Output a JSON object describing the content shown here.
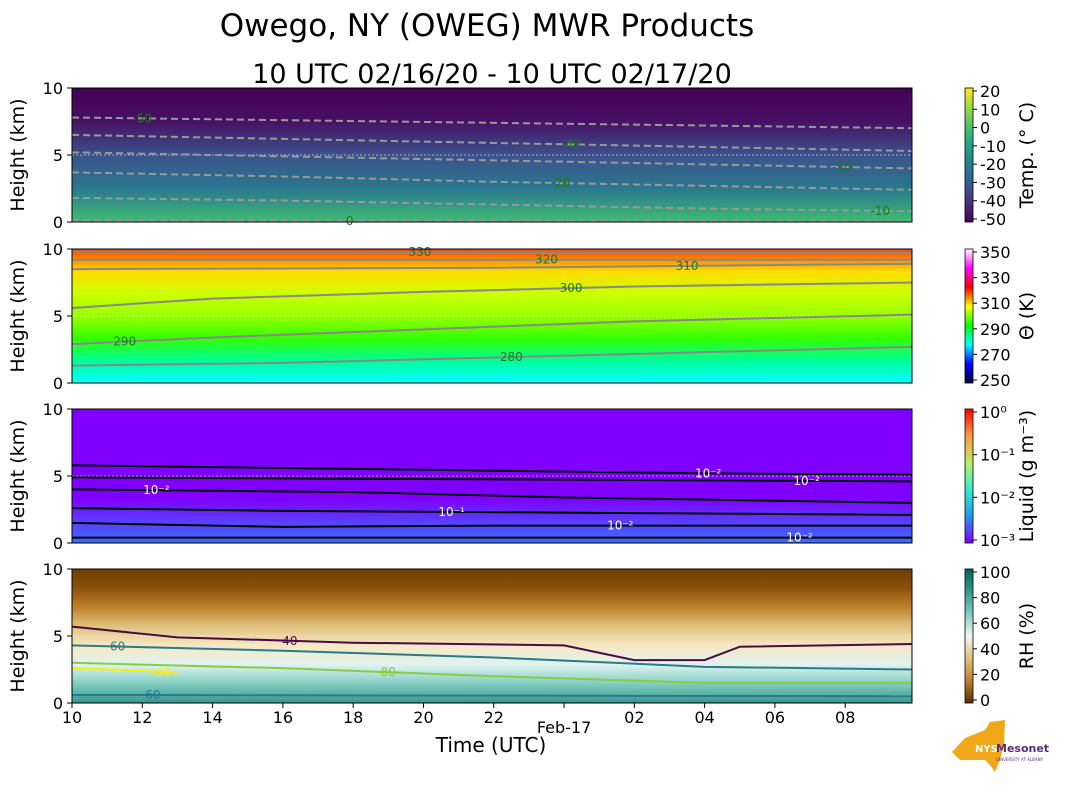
{
  "chart_data": {
    "type": "heatmap",
    "title": "Owego, NY (OWEG) MWR Products",
    "subtitle": "10 UTC 02/16/20 - 10 UTC 02/17/20",
    "xlabel": "Time (UTC)",
    "xlim_hours": [
      0,
      23.9
    ],
    "x_ticks": [
      {
        "h": 0,
        "label": "10"
      },
      {
        "h": 2,
        "label": "12"
      },
      {
        "h": 4,
        "label": "14"
      },
      {
        "h": 6,
        "label": "16"
      },
      {
        "h": 8,
        "label": "18"
      },
      {
        "h": 10,
        "label": "20"
      },
      {
        "h": 12,
        "label": "22"
      },
      {
        "h": 14,
        "label": "Feb-17"
      },
      {
        "h": 16,
        "label": "02"
      },
      {
        "h": 18,
        "label": "04"
      },
      {
        "h": 20,
        "label": "06"
      },
      {
        "h": 22,
        "label": "08"
      }
    ],
    "panels": [
      {
        "name": "temperature",
        "ylabel": "Height (km)",
        "ylim": [
          0,
          10
        ],
        "yticks": [
          "0",
          "5",
          "10"
        ],
        "gradient": [
          "#3fbc73",
          "#2a788e",
          "#3b528b",
          "#471164",
          "#440154"
        ],
        "cbar_label": "Temp. (° C)",
        "cbar_ticks": [
          "20",
          "10",
          "0",
          "-10",
          "-20",
          "-30",
          "-40",
          "-50"
        ],
        "cbar_colors": [
          "#fde725",
          "#8fd744",
          "#35b779",
          "#21918c",
          "#31688e",
          "#443983",
          "#440154"
        ],
        "contours": [
          {
            "level": "-50",
            "color": "#999999",
            "dash": true,
            "label_color": "#1a7a1a",
            "label_at": 2,
            "points": [
              [
                0,
                7.8
              ],
              [
                6,
                7.6
              ],
              [
                12,
                7.4
              ],
              [
                18,
                7.2
              ],
              [
                23.9,
                7.0
              ]
            ]
          },
          {
            "level": "-40",
            "color": "#999999",
            "dash": true,
            "label_color": "#1a7a1a",
            "label_at": 14.2,
            "points": [
              [
                0,
                6.5
              ],
              [
                6,
                6.2
              ],
              [
                12,
                5.9
              ],
              [
                18,
                5.6
              ],
              [
                23.9,
                5.3
              ]
            ]
          },
          {
            "level": "-30",
            "color": "#999999",
            "dash": true,
            "label_color": "#1a7a1a",
            "label_at": 21.9,
            "points": [
              [
                0,
                5.2
              ],
              [
                6,
                4.9
              ],
              [
                12,
                4.6
              ],
              [
                18,
                4.3
              ],
              [
                23.9,
                4.0
              ]
            ]
          },
          {
            "level": "-20",
            "color": "#999999",
            "dash": true,
            "label_color": "#1a7a1a",
            "label_at": 13.9,
            "points": [
              [
                0,
                3.7
              ],
              [
                6,
                3.4
              ],
              [
                12,
                3.0
              ],
              [
                18,
                2.7
              ],
              [
                23.9,
                2.4
              ]
            ]
          },
          {
            "level": "-10",
            "color": "#999999",
            "dash": true,
            "label_color": "#1a7a1a",
            "label_at": 23,
            "points": [
              [
                0,
                1.8
              ],
              [
                6,
                1.6
              ],
              [
                12,
                1.3
              ],
              [
                18,
                1.0
              ],
              [
                23.9,
                0.8
              ]
            ]
          },
          {
            "level": "0",
            "color": "#999999",
            "dash": true,
            "label_color": "#1a7a1a",
            "label_at": 7.9,
            "points": [
              [
                0,
                0.1
              ],
              [
                23.9,
                0.05
              ]
            ]
          }
        ]
      },
      {
        "name": "potential-temperature",
        "ylabel": "Height (km)",
        "ylim": [
          0,
          10
        ],
        "yticks": [
          "0",
          "5",
          "10"
        ],
        "gradient": [
          "#00ffff",
          "#00ff99",
          "#33ff00",
          "#99ff00",
          "#ccff00",
          "#ffdd00",
          "#ff4400"
        ],
        "cbar_label": "Θ (K)",
        "cbar_ticks": [
          "350",
          "330",
          "310",
          "290",
          "270",
          "250"
        ],
        "cbar_colors": [
          "#ffffff",
          "#ff00ff",
          "#ff0000",
          "#ffff00",
          "#00ff00",
          "#00ffff",
          "#0000ff",
          "#000033"
        ],
        "contours": [
          {
            "level": "330",
            "color": "#888888",
            "dash": false,
            "label_color": "#1a7a1a",
            "label_at": 9.9,
            "points": [
              [
                0,
                9.8
              ],
              [
                23.9,
                9.7
              ]
            ]
          },
          {
            "level": "320",
            "color": "#888888",
            "dash": false,
            "label_color": "#1a7a1a",
            "label_at": 13.5,
            "points": [
              [
                0,
                9.2
              ],
              [
                23.9,
                9.2
              ]
            ]
          },
          {
            "level": "310",
            "color": "#888888",
            "dash": false,
            "label_color": "#1a7a1a",
            "label_at": 17.5,
            "points": [
              [
                0,
                8.5
              ],
              [
                12,
                8.6
              ],
              [
                23.9,
                8.9
              ]
            ]
          },
          {
            "level": "300",
            "color": "#888888",
            "dash": false,
            "label_color": "#1a7a1a",
            "label_at": 14.2,
            "points": [
              [
                0,
                5.6
              ],
              [
                4,
                6.3
              ],
              [
                10,
                6.8
              ],
              [
                16,
                7.2
              ],
              [
                23.9,
                7.5
              ]
            ]
          },
          {
            "level": "290",
            "color": "#888888",
            "dash": false,
            "label_color": "#1a7a1a",
            "label_at": 1.5,
            "points": [
              [
                0,
                2.9
              ],
              [
                4,
                3.4
              ],
              [
                10,
                4.0
              ],
              [
                16,
                4.6
              ],
              [
                23.9,
                5.1
              ]
            ]
          },
          {
            "level": "280",
            "color": "#888888",
            "dash": false,
            "label_color": "#1a7a1a",
            "label_at": 12.5,
            "points": [
              [
                0,
                1.3
              ],
              [
                6,
                1.5
              ],
              [
                12,
                1.9
              ],
              [
                18,
                2.3
              ],
              [
                23.9,
                2.7
              ]
            ]
          }
        ]
      },
      {
        "name": "liquid-water",
        "ylabel": "Height (km)",
        "ylim": [
          0,
          10
        ],
        "yticks": [
          "0",
          "5",
          "10"
        ],
        "gradient": [
          "#3a6cff",
          "#5a3cff",
          "#7f00ff",
          "#7f00ff",
          "#7f00ff",
          "#7f00ff",
          "#7f00ff"
        ],
        "cbar_label": "Liquid (g m⁻³)",
        "cbar_ticks": [
          "10⁰",
          "10⁻¹",
          "10⁻²",
          "10⁻³"
        ],
        "cbar_colors": [
          "#ff0000",
          "#ff9944",
          "#bbee66",
          "#33eecc",
          "#2299ee",
          "#7f00ff"
        ],
        "contours": [
          {
            "level": "10⁻²",
            "color": "#000000",
            "dash": false,
            "label_color": "#ffffff",
            "label_at": 18.1,
            "points": [
              [
                0,
                5.8
              ],
              [
                6,
                5.6
              ],
              [
                12,
                5.4
              ],
              [
                18,
                5.2
              ],
              [
                23.9,
                5.1
              ]
            ]
          },
          {
            "level": "10⁻²",
            "color": "#000000",
            "dash": false,
            "label_color": "#ffffff",
            "label_at": 20.9,
            "points": [
              [
                0,
                4.9
              ],
              [
                23.9,
                4.6
              ]
            ]
          },
          {
            "level": "10⁻²",
            "color": "#000000",
            "dash": false,
            "label_color": "#ffffff",
            "label_at": 2.4,
            "points": [
              [
                0,
                4.0
              ],
              [
                8,
                3.8
              ],
              [
                14,
                3.4
              ],
              [
                23.9,
                3.0
              ]
            ]
          },
          {
            "level": "10⁻¹",
            "color": "#000000",
            "dash": false,
            "label_color": "#ffffff",
            "label_at": 10.8,
            "points": [
              [
                0,
                2.6
              ],
              [
                6,
                2.4
              ],
              [
                12,
                2.3
              ],
              [
                23.9,
                2.1
              ]
            ]
          },
          {
            "level": "10⁻²",
            "color": "#000000",
            "dash": false,
            "label_color": "#ffffff",
            "label_at": 15.6,
            "points": [
              [
                0,
                1.5
              ],
              [
                6,
                1.2
              ],
              [
                12,
                1.3
              ],
              [
                23.9,
                1.3
              ]
            ]
          },
          {
            "level": "10⁻²",
            "color": "#000000",
            "dash": false,
            "label_color": "#ffffff",
            "label_at": 20.7,
            "points": [
              [
                0,
                0.4
              ],
              [
                23.9,
                0.4
              ]
            ]
          }
        ]
      },
      {
        "name": "relative-humidity",
        "ylabel": "Height (km)",
        "ylim": [
          0,
          10
        ],
        "yticks": [
          "0",
          "5",
          "10"
        ],
        "gradient": [
          "#35978f",
          "#80cdc1",
          "#e0f3f0",
          "#f6e8c3",
          "#dfc27d",
          "#bf812d",
          "#8c510a",
          "#6b3d07"
        ],
        "cbar_label": "RH (%)",
        "cbar_ticks": [
          "100",
          "80",
          "60",
          "40",
          "20",
          "0"
        ],
        "cbar_colors": [
          "#01665e",
          "#35978f",
          "#80cdc1",
          "#f5f5f5",
          "#dfc27d",
          "#bf812d",
          "#543005"
        ],
        "contours": [
          {
            "level": "40",
            "color": "#4a0a4a",
            "dash": false,
            "label_color": "#4a0a4a",
            "label_at": 6.2,
            "points": [
              [
                0,
                5.7
              ],
              [
                3,
                4.9
              ],
              [
                8,
                4.5
              ],
              [
                14,
                4.3
              ],
              [
                16,
                3.2
              ],
              [
                18,
                3.2
              ],
              [
                19,
                4.2
              ],
              [
                23.9,
                4.4
              ]
            ]
          },
          {
            "level": "60",
            "color": "#2a7a8a",
            "dash": false,
            "label_color": "#2a7a8a",
            "label_at": 1.3,
            "points": [
              [
                0,
                4.3
              ],
              [
                6,
                3.9
              ],
              [
                12,
                3.4
              ],
              [
                18,
                2.7
              ],
              [
                23.9,
                2.5
              ]
            ]
          },
          {
            "level": "80",
            "color": "#88cc44",
            "dash": false,
            "label_color": "#88cc44",
            "label_at": 9,
            "points": [
              [
                0,
                3.0
              ],
              [
                6,
                2.6
              ],
              [
                12,
                2.0
              ],
              [
                18,
                1.5
              ],
              [
                23.9,
                1.5
              ]
            ]
          },
          {
            "level": "90",
            "color": "#ffee00",
            "dash": false,
            "label_color": "#ffee00",
            "label_at": 2.6,
            "points": [
              [
                0,
                2.6
              ],
              [
                2,
                2.4
              ],
              [
                3,
                2.2
              ]
            ]
          },
          {
            "level": "60",
            "color": "#2a7a8a",
            "dash": false,
            "label_color": "#2a7a8a",
            "label_at": 2.3,
            "points": [
              [
                0,
                0.6
              ],
              [
                23.9,
                0.5
              ]
            ]
          }
        ]
      }
    ]
  },
  "logo": {
    "text": "NYS Mesonet",
    "subtext": "UNIVERSITY AT ALBANY"
  }
}
